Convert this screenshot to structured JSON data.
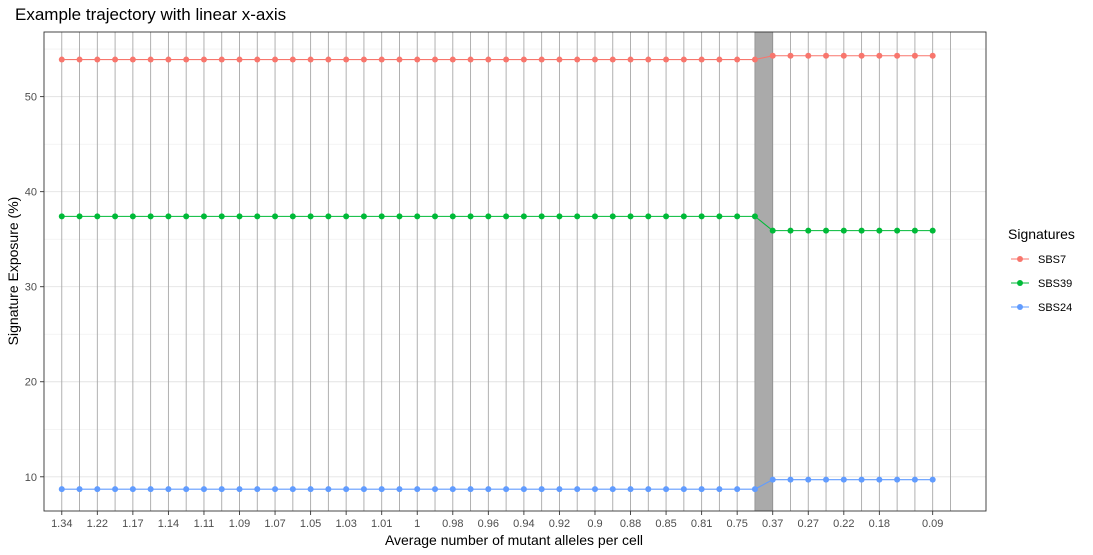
{
  "chart_data": {
    "type": "line",
    "title": "Example trajectory with linear x-axis",
    "xlabel": "Average number of mutant alleles per cell",
    "ylabel": "Signature Exposure (%)",
    "ylim": [
      6.4,
      56.8
    ],
    "yticks": [
      10,
      20,
      30,
      40,
      50
    ],
    "grid": true,
    "legend_title": "Signatures",
    "legend_position": "right",
    "x_tick_labels": [
      "1.34",
      "1.22",
      "1.17",
      "1.14",
      "1.11",
      "1.09",
      "1.07",
      "1.05",
      "1.03",
      "1.01",
      "1",
      "0.98",
      "0.96",
      "0.94",
      "0.92",
      "0.9",
      "0.88",
      "0.85",
      "0.81",
      "0.75",
      "0.37",
      "0.27",
      "0.22",
      "0.18",
      "0.09"
    ],
    "x_index_range": [
      -1,
      52
    ],
    "change_point_index": 39,
    "series": [
      {
        "name": "SBS7",
        "color": "#F8766D",
        "before": 53.9,
        "after": 54.3
      },
      {
        "name": "SBS39",
        "color": "#00BA38",
        "before": 37.4,
        "after": 35.9
      },
      {
        "name": "SBS24",
        "color": "#619CFF",
        "before": 8.7,
        "after": 9.7
      }
    ],
    "n_points": 50
  }
}
